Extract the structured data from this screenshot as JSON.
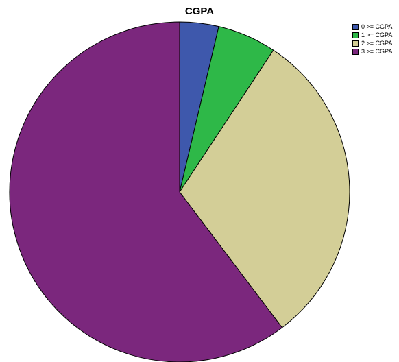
{
  "chart_data": {
    "type": "pie",
    "title": "CGPA",
    "categories": [
      "0 >= CGPA",
      "1 >= CGPA",
      "2 >= CGPA",
      "3 >= CGPA"
    ],
    "values": [
      3.7,
      5.6,
      30.4,
      60.3
    ],
    "colors": [
      "#3e58ac",
      "#2eb848",
      "#d3ce97",
      "#7b277d"
    ],
    "legend_position": "top-right"
  }
}
